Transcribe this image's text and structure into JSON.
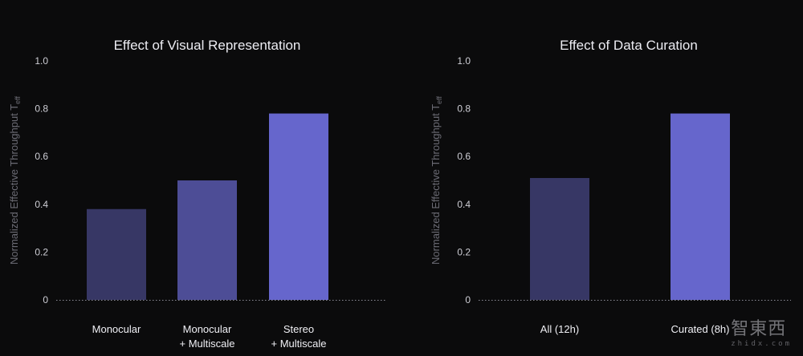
{
  "chart_data": [
    {
      "type": "bar",
      "title": "Effect of Visual Representation",
      "ylabel": "Normalized Effective Throughput T",
      "ylabel_subscript": "eff",
      "ylim": [
        0,
        1.0
      ],
      "yticks": [
        "0",
        "0.2",
        "0.4",
        "0.6",
        "0.8",
        "1.0"
      ],
      "grid": false,
      "categories": [
        [
          "Monocular"
        ],
        [
          "Monocular",
          "+ Multiscale"
        ],
        [
          "Stereo",
          "+ Multiscale"
        ]
      ],
      "values": [
        0.38,
        0.5,
        0.78
      ],
      "colors": [
        "#373765",
        "#4d4d96",
        "#6666cc"
      ]
    },
    {
      "type": "bar",
      "title": "Effect of Data Curation",
      "ylabel": "Normalized Effective Throughput T",
      "ylabel_subscript": "eff",
      "ylim": [
        0,
        1.0
      ],
      "yticks": [
        "0",
        "0.2",
        "0.4",
        "0.6",
        "0.8",
        "1.0"
      ],
      "grid": false,
      "categories": [
        [
          "All (12h)"
        ],
        [
          "Curated (8h)"
        ]
      ],
      "values": [
        0.51,
        0.78
      ],
      "colors": [
        "#373765",
        "#6666cc"
      ]
    }
  ],
  "watermark": {
    "logo_text": "智東西",
    "sub_text": "zhidx.com"
  }
}
